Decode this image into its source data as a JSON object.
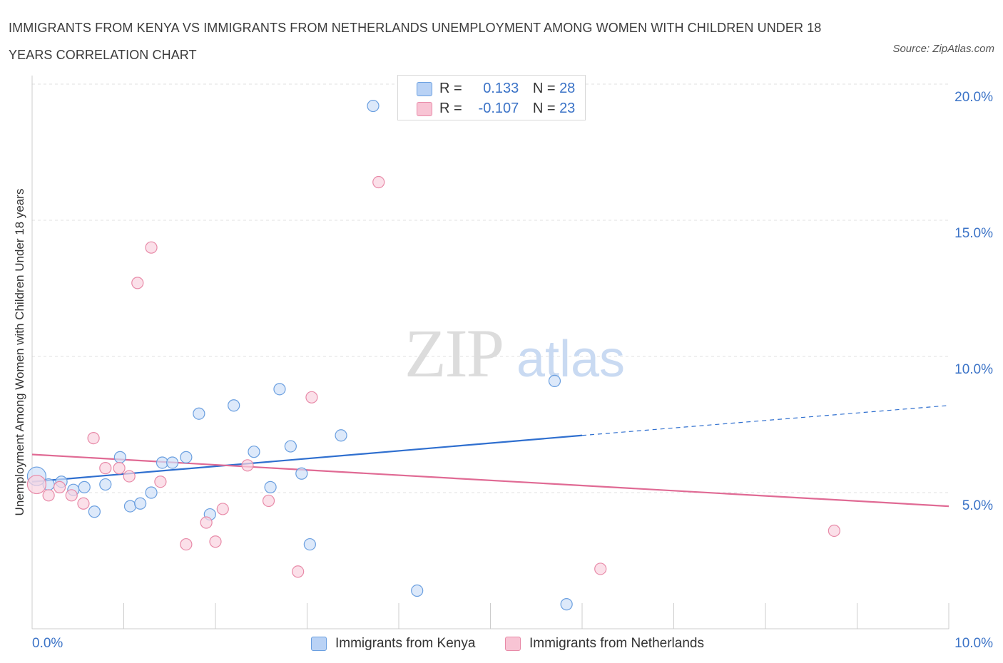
{
  "title": "IMMIGRANTS FROM KENYA VS IMMIGRANTS FROM NETHERLANDS UNEMPLOYMENT AMONG WOMEN WITH CHILDREN UNDER 18 YEARS CORRELATION CHART",
  "source": "Source: ZipAtlas.com",
  "watermark": {
    "zip": "ZIP",
    "atlas": "atlas"
  },
  "legend": {
    "rows": [
      {
        "r_label": "R =",
        "r_value": "0.133",
        "n_label": "N =",
        "n_value": "28",
        "color": "#b9d2f5",
        "border": "#6a9fe0"
      },
      {
        "r_label": "R =",
        "r_value": "-0.107",
        "n_label": "N =",
        "n_value": "23",
        "color": "#f8c4d4",
        "border": "#e88aa8"
      }
    ]
  },
  "bottom_legend": [
    {
      "label": "Immigrants from Kenya",
      "color": "#b9d2f5",
      "border": "#6a9fe0"
    },
    {
      "label": "Immigrants from Netherlands",
      "color": "#f8c4d4",
      "border": "#e88aa8"
    }
  ],
  "chart_data": {
    "type": "scatter",
    "ylabel": "Unemployment Among Women with Children Under 18 years",
    "xlim": [
      0,
      10
    ],
    "ylim": [
      0,
      20
    ],
    "x_tick_labels": [
      "0.0%",
      "10.0%"
    ],
    "y_ticks": [
      5,
      10,
      15,
      20
    ],
    "y_tick_labels": [
      "5.0%",
      "10.0%",
      "15.0%",
      "20.0%"
    ],
    "grid": true,
    "legend_position": "top-center",
    "series": [
      {
        "name": "Immigrants from Kenya",
        "color": "#6a9fe0",
        "fill": "#cfe0f8",
        "line_color": "#2f6fcf",
        "points": [
          [
            0.05,
            5.6
          ],
          [
            0.18,
            5.3
          ],
          [
            0.32,
            5.4
          ],
          [
            0.45,
            5.1
          ],
          [
            0.57,
            5.2
          ],
          [
            0.68,
            4.3
          ],
          [
            0.8,
            5.3
          ],
          [
            0.96,
            6.3
          ],
          [
            1.07,
            4.5
          ],
          [
            1.18,
            4.6
          ],
          [
            1.3,
            5.0
          ],
          [
            1.42,
            6.1
          ],
          [
            1.53,
            6.1
          ],
          [
            1.68,
            6.3
          ],
          [
            1.82,
            7.9
          ],
          [
            1.94,
            4.2
          ],
          [
            2.2,
            8.2
          ],
          [
            2.42,
            6.5
          ],
          [
            2.6,
            5.2
          ],
          [
            2.7,
            8.8
          ],
          [
            2.82,
            6.7
          ],
          [
            2.94,
            5.7
          ],
          [
            3.03,
            3.1
          ],
          [
            3.37,
            7.1
          ],
          [
            3.72,
            19.2
          ],
          [
            4.2,
            1.4
          ],
          [
            5.7,
            9.1
          ],
          [
            5.83,
            0.9
          ]
        ],
        "trend": {
          "x0": 0,
          "y0": 5.4,
          "x1": 6.0,
          "y1": 7.1,
          "dash_x1": 10.0,
          "dash_y1": 8.2
        }
      },
      {
        "name": "Immigrants from Netherlands",
        "color": "#e88aa8",
        "fill": "#f9d3df",
        "line_color": "#e06a94",
        "points": [
          [
            0.05,
            5.3
          ],
          [
            0.18,
            4.9
          ],
          [
            0.3,
            5.2
          ],
          [
            0.43,
            4.9
          ],
          [
            0.56,
            4.6
          ],
          [
            0.67,
            7.0
          ],
          [
            0.8,
            5.9
          ],
          [
            0.95,
            5.9
          ],
          [
            1.06,
            5.6
          ],
          [
            1.15,
            12.7
          ],
          [
            1.3,
            14.0
          ],
          [
            1.4,
            5.4
          ],
          [
            1.68,
            3.1
          ],
          [
            1.9,
            3.9
          ],
          [
            2.0,
            3.2
          ],
          [
            2.08,
            4.4
          ],
          [
            2.35,
            6.0
          ],
          [
            2.58,
            4.7
          ],
          [
            2.9,
            2.1
          ],
          [
            3.05,
            8.5
          ],
          [
            3.78,
            16.4
          ],
          [
            6.2,
            2.2
          ],
          [
            8.75,
            3.6
          ]
        ],
        "trend": {
          "x0": 0,
          "y0": 6.4,
          "x1": 10.0,
          "y1": 4.5
        }
      }
    ]
  }
}
